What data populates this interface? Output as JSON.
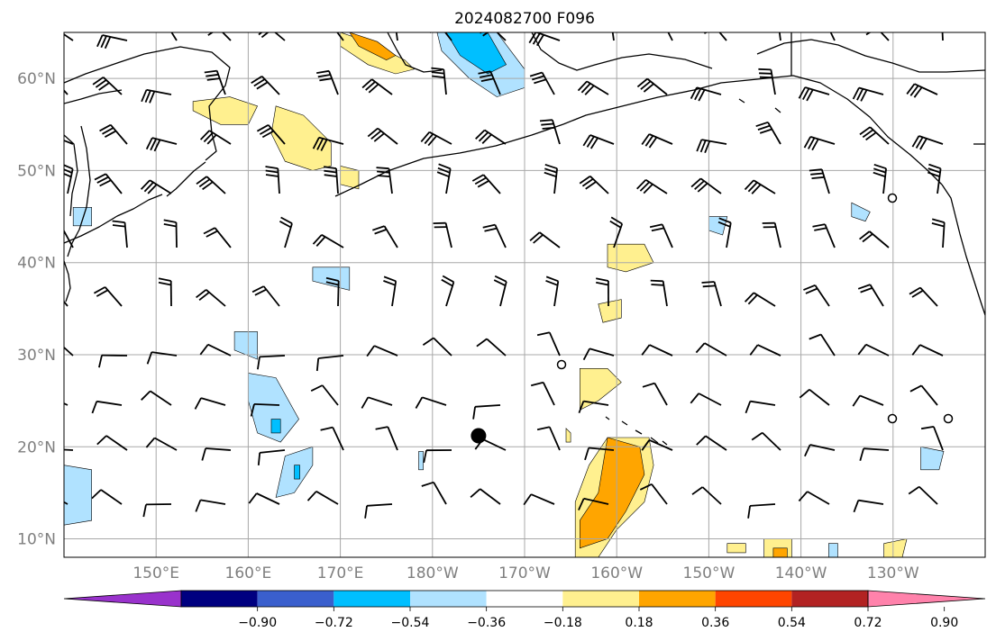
{
  "title": "2024082700 F096",
  "map": {
    "extent": {
      "lon_min": 140,
      "lon_max": 240,
      "lat_min": 8,
      "lat_max": 65
    },
    "lat_ticks": [
      {
        "lat": 10,
        "label": "10°N"
      },
      {
        "lat": 20,
        "label": "20°N"
      },
      {
        "lat": 30,
        "label": "30°N"
      },
      {
        "lat": 40,
        "label": "40°N"
      },
      {
        "lat": 50,
        "label": "50°N"
      },
      {
        "lat": 60,
        "label": "60°N"
      }
    ],
    "lon_ticks": [
      {
        "lon": 150,
        "label": "150°E"
      },
      {
        "lon": 160,
        "label": "160°E"
      },
      {
        "lon": 170,
        "label": "170°E"
      },
      {
        "lon": 180,
        "label": "180°W"
      },
      {
        "lon": 190,
        "label": "170°W"
      },
      {
        "lon": 200,
        "label": "160°W"
      },
      {
        "lon": 210,
        "label": "150°W"
      },
      {
        "lon": 220,
        "label": "140°W"
      },
      {
        "lon": 230,
        "label": "130°W"
      }
    ],
    "grid_lines": true,
    "storm_marker": {
      "lon": 185,
      "lat": 21.2
    }
  },
  "colorbar": {
    "bins": [
      {
        "color": "#9932cc"
      },
      {
        "color": "#000080"
      },
      {
        "color": "#3a5fcd"
      },
      {
        "color": "#00bfff"
      },
      {
        "color": "#b0e2ff"
      },
      {
        "color": "#ffffff"
      },
      {
        "color": "#fff08f"
      },
      {
        "color": "#ffa500"
      },
      {
        "color": "#ff4500"
      },
      {
        "color": "#b22222"
      },
      {
        "color": "#ff82ab"
      }
    ],
    "ticks": [
      {
        "value": -0.9,
        "label": "−0.90"
      },
      {
        "value": -0.72,
        "label": "−0.72"
      },
      {
        "value": -0.54,
        "label": "−0.54"
      },
      {
        "value": -0.36,
        "label": "−0.36"
      },
      {
        "value": -0.18,
        "label": "−0.18"
      },
      {
        "value": 0.18,
        "label": "0.18"
      },
      {
        "value": 0.36,
        "label": "0.36"
      },
      {
        "value": 0.54,
        "label": "0.54"
      },
      {
        "value": 0.72,
        "label": "0.72"
      },
      {
        "value": 0.9,
        "label": "0.90"
      }
    ]
  },
  "anomaly_regions": [
    {
      "level": 0.18,
      "color": "#fff08f",
      "points": [
        [
          170,
          65
        ],
        [
          173,
          64
        ],
        [
          177,
          62
        ],
        [
          178,
          61
        ],
        [
          176,
          60.5
        ],
        [
          173,
          61.5
        ],
        [
          170,
          63.5
        ]
      ]
    },
    {
      "level": 0.36,
      "color": "#ffa500",
      "points": [
        [
          171,
          65
        ],
        [
          174,
          64
        ],
        [
          176,
          62.5
        ],
        [
          175,
          62
        ],
        [
          172,
          63.5
        ]
      ]
    },
    {
      "level": 0.18,
      "color": "#fff08f",
      "points": [
        [
          154,
          57.5
        ],
        [
          158,
          58
        ],
        [
          161,
          57
        ],
        [
          160,
          55
        ],
        [
          157,
          55
        ],
        [
          154,
          56.5
        ]
      ]
    },
    {
      "level": 0.18,
      "color": "#fff08f",
      "points": [
        [
          163,
          57
        ],
        [
          166,
          56
        ],
        [
          169,
          53
        ],
        [
          169,
          50.5
        ],
        [
          167,
          50
        ],
        [
          164,
          51
        ],
        [
          162.5,
          54
        ]
      ]
    },
    {
      "level": 0.18,
      "color": "#fff08f",
      "points": [
        [
          170,
          50.5
        ],
        [
          172,
          50
        ],
        [
          172,
          48
        ],
        [
          170,
          48.5
        ]
      ]
    },
    {
      "level": -0.18,
      "color": "#b0e2ff",
      "points": [
        [
          180.5,
          65
        ],
        [
          187,
          65
        ],
        [
          190,
          61
        ],
        [
          190,
          59
        ],
        [
          187,
          58
        ],
        [
          184,
          60
        ],
        [
          181,
          63
        ]
      ]
    },
    {
      "level": -0.36,
      "color": "#00bfff",
      "points": [
        [
          181.5,
          65
        ],
        [
          186,
          65
        ],
        [
          188,
          61.5
        ],
        [
          186,
          60.5
        ],
        [
          183,
          62.5
        ]
      ]
    },
    {
      "level": -0.18,
      "color": "#b0e2ff",
      "points": [
        [
          141,
          46
        ],
        [
          143,
          46
        ],
        [
          143,
          44
        ],
        [
          141,
          44
        ]
      ]
    },
    {
      "level": -0.18,
      "color": "#b0e2ff",
      "points": [
        [
          167,
          39.5
        ],
        [
          171,
          39.5
        ],
        [
          171,
          37
        ],
        [
          167,
          38
        ]
      ]
    },
    {
      "level": 0.18,
      "color": "#fff08f",
      "points": [
        [
          199,
          42
        ],
        [
          203,
          42
        ],
        [
          204,
          40
        ],
        [
          201,
          39
        ],
        [
          199,
          39.5
        ]
      ]
    },
    {
      "level": 0.18,
      "color": "#fff08f",
      "points": [
        [
          198,
          35.5
        ],
        [
          200.5,
          36
        ],
        [
          200.5,
          34
        ],
        [
          198.5,
          33.5
        ]
      ]
    },
    {
      "level": -0.18,
      "color": "#b0e2ff",
      "points": [
        [
          210,
          45
        ],
        [
          212,
          45
        ],
        [
          211.5,
          43
        ],
        [
          210,
          43.5
        ]
      ]
    },
    {
      "level": -0.18,
      "color": "#b0e2ff",
      "points": [
        [
          225.5,
          46.5
        ],
        [
          227.5,
          45.5
        ],
        [
          227,
          44.5
        ],
        [
          225.5,
          45
        ]
      ]
    },
    {
      "level": -0.18,
      "color": "#b0e2ff",
      "points": [
        [
          158.5,
          32.5
        ],
        [
          161,
          32.5
        ],
        [
          161,
          29.5
        ],
        [
          158.5,
          30.5
        ]
      ]
    },
    {
      "level": -0.18,
      "color": "#b0e2ff",
      "points": [
        [
          160,
          28
        ],
        [
          163,
          27.5
        ],
        [
          165.5,
          23
        ],
        [
          163.5,
          20.5
        ],
        [
          161,
          21.5
        ],
        [
          160,
          25
        ]
      ]
    },
    {
      "level": -0.36,
      "color": "#00bfff",
      "points": [
        [
          162.5,
          23
        ],
        [
          163.5,
          23
        ],
        [
          163.5,
          21.5
        ],
        [
          162.5,
          21.5
        ]
      ]
    },
    {
      "level": -0.18,
      "color": "#b0e2ff",
      "points": [
        [
          164,
          19
        ],
        [
          167,
          20
        ],
        [
          167,
          18
        ],
        [
          165,
          15
        ],
        [
          163,
          14.5
        ]
      ]
    },
    {
      "level": -0.36,
      "color": "#00bfff",
      "points": [
        [
          165,
          18
        ],
        [
          165.6,
          18
        ],
        [
          165.6,
          16.5
        ],
        [
          165,
          16.5
        ]
      ]
    },
    {
      "level": 0.18,
      "color": "#fff08f",
      "points": [
        [
          196,
          28.5
        ],
        [
          199,
          28.5
        ],
        [
          200.5,
          27
        ],
        [
          198,
          25
        ],
        [
          196,
          24
        ]
      ]
    },
    {
      "level": 0.18,
      "color": "#fff08f",
      "points": [
        [
          199,
          21
        ],
        [
          203.5,
          21
        ],
        [
          204,
          18
        ],
        [
          203,
          14
        ],
        [
          200,
          11
        ],
        [
          198,
          8
        ],
        [
          195.5,
          8
        ],
        [
          195.5,
          14
        ],
        [
          197,
          18
        ]
      ]
    },
    {
      "level": 0.36,
      "color": "#ffa500",
      "points": [
        [
          199,
          21
        ],
        [
          202.5,
          20
        ],
        [
          203,
          17
        ],
        [
          201,
          13
        ],
        [
          199,
          10
        ],
        [
          196,
          9
        ],
        [
          196,
          12
        ],
        [
          198,
          15
        ]
      ]
    },
    {
      "level": 0.18,
      "color": "#fff08f",
      "points": [
        [
          194.5,
          22
        ],
        [
          195,
          21.5
        ],
        [
          195,
          20.5
        ],
        [
          194.5,
          20.5
        ]
      ]
    },
    {
      "level": -0.18,
      "color": "#b0e2ff",
      "points": [
        [
          140,
          18
        ],
        [
          143,
          17.5
        ],
        [
          143,
          12
        ],
        [
          140,
          11.5
        ]
      ]
    },
    {
      "level": -0.18,
      "color": "#b0e2ff",
      "points": [
        [
          178.5,
          19.5
        ],
        [
          179,
          19.5
        ],
        [
          179,
          17.5
        ],
        [
          178.5,
          17.5
        ]
      ]
    },
    {
      "level": -0.18,
      "color": "#b0e2ff",
      "points": [
        [
          233,
          20
        ],
        [
          235.5,
          19.5
        ],
        [
          235,
          17.5
        ],
        [
          233,
          17.5
        ]
      ]
    },
    {
      "level": 0.18,
      "color": "#fff08f",
      "points": [
        [
          216,
          10
        ],
        [
          219,
          10
        ],
        [
          219,
          8
        ],
        [
          216,
          8
        ]
      ]
    },
    {
      "level": 0.36,
      "color": "#ffa500",
      "points": [
        [
          217,
          9
        ],
        [
          218.5,
          9
        ],
        [
          218.5,
          8
        ],
        [
          217,
          8
        ]
      ]
    },
    {
      "level": 0.18,
      "color": "#fff08f",
      "points": [
        [
          212,
          9.5
        ],
        [
          214,
          9.5
        ],
        [
          214,
          8.5
        ],
        [
          212,
          8.5
        ]
      ]
    },
    {
      "level": -0.18,
      "color": "#b0e2ff",
      "points": [
        [
          223,
          9.5
        ],
        [
          224,
          9.5
        ],
        [
          224,
          8
        ],
        [
          223,
          8
        ]
      ]
    },
    {
      "level": 0.18,
      "color": "#fff08f",
      "points": [
        [
          229,
          9.5
        ],
        [
          231.5,
          10
        ],
        [
          231,
          8
        ],
        [
          229,
          8
        ]
      ]
    }
  ]
}
